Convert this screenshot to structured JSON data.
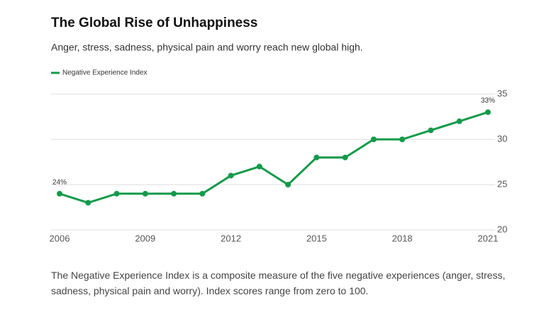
{
  "chart_data": {
    "type": "line",
    "title": "The Global Rise of Unhappiness",
    "subtitle": "Anger, stress, sadness, physical pain and worry reach new global high.",
    "note": "The Negative Experience Index is a composite measure of the five negative experiences (anger, stress, sadness, physical pain and worry). Index scores range from zero to 100.",
    "x": [
      2006,
      2007,
      2008,
      2009,
      2010,
      2011,
      2012,
      2013,
      2014,
      2015,
      2016,
      2017,
      2018,
      2019,
      2020,
      2021
    ],
    "series": [
      {
        "name": "Negative Experience Index",
        "color": "#149a4b",
        "values": [
          24,
          23,
          24,
          24,
          24,
          24,
          26,
          27,
          25,
          28,
          28,
          30,
          30,
          31,
          32,
          33
        ],
        "value_labels": [
          "24%",
          null,
          null,
          null,
          null,
          null,
          null,
          null,
          null,
          null,
          null,
          null,
          null,
          null,
          null,
          "33%"
        ]
      }
    ],
    "xlim": [
      2006,
      2021
    ],
    "xticks": [
      2006,
      2009,
      2012,
      2015,
      2018,
      2021
    ],
    "ylim": [
      20,
      35
    ],
    "yticks": [
      20,
      25,
      30,
      35
    ],
    "grid": true,
    "legend": "top-left"
  }
}
